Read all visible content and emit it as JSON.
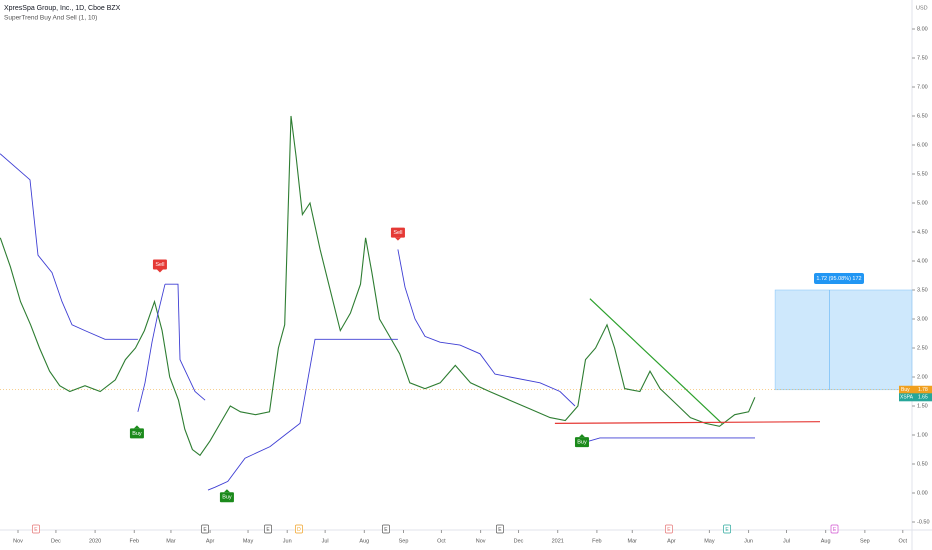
{
  "chart_data": {
    "type": "line",
    "title": "XpresSpa Group, Inc., 1D, Cboe BZX",
    "subtitle": "SuperTrend Buy And Sell (1, 10)",
    "currency": "USD",
    "xlim": [
      -14.24,
      707.3
    ],
    "ylim": [
      -0.5,
      8.5
    ],
    "yticks": [
      {
        "value": -0.5,
        "label": "-0.50"
      },
      {
        "value": 0,
        "label": "0.00"
      },
      {
        "value": 0.5,
        "label": "0.50"
      },
      {
        "value": 1,
        "label": "1.00"
      },
      {
        "value": 1.5,
        "label": "1.50"
      },
      {
        "value": 2,
        "label": "2.00"
      },
      {
        "value": 2.5,
        "label": "2.50"
      },
      {
        "value": 3,
        "label": "3.00"
      },
      {
        "value": 3.5,
        "label": "3.50"
      },
      {
        "value": 4,
        "label": "4.00"
      },
      {
        "value": 4.5,
        "label": "4.50"
      },
      {
        "value": 5,
        "label": "5.00"
      },
      {
        "value": 5.5,
        "label": "5.50"
      },
      {
        "value": 6,
        "label": "6.00"
      },
      {
        "value": 6.5,
        "label": "6.50"
      },
      {
        "value": 7,
        "label": "7.00"
      },
      {
        "value": 7.5,
        "label": "7.50"
      },
      {
        "value": 8,
        "label": "8.00"
      }
    ],
    "xticks": [
      {
        "value": 0,
        "label": "Nov"
      },
      {
        "value": 30,
        "label": "Dec"
      },
      {
        "value": 61,
        "label": "2020"
      },
      {
        "value": 92,
        "label": "Feb"
      },
      {
        "value": 121,
        "label": "Mar"
      },
      {
        "value": 152,
        "label": "Apr"
      },
      {
        "value": 182,
        "label": "May"
      },
      {
        "value": 213,
        "label": "Jun"
      },
      {
        "value": 243,
        "label": "Jul"
      },
      {
        "value": 274,
        "label": "Aug"
      },
      {
        "value": 305,
        "label": "Sep"
      },
      {
        "value": 335,
        "label": "Oct"
      },
      {
        "value": 366,
        "label": "Nov"
      },
      {
        "value": 396,
        "label": "Dec"
      },
      {
        "value": 427,
        "label": "2021"
      },
      {
        "value": 458,
        "label": "Feb"
      },
      {
        "value": 486,
        "label": "Mar"
      },
      {
        "value": 517,
        "label": "Apr"
      },
      {
        "value": 547,
        "label": "May"
      },
      {
        "value": 578,
        "label": "Jun"
      },
      {
        "value": 608,
        "label": "Jul"
      },
      {
        "value": 639,
        "label": "Aug"
      },
      {
        "value": 670,
        "label": "Sep"
      },
      {
        "value": 700,
        "label": "Oct"
      }
    ],
    "series": [
      {
        "color": "#2e7d32",
        "x": [
          -14,
          -6,
          2,
          10,
          17,
          25,
          33,
          41,
          53,
          65,
          77,
          85,
          93,
          100,
          108,
          114,
          120,
          127,
          132,
          138,
          144,
          152,
          160,
          168,
          176,
          188,
          199,
          206,
          211,
          216,
          220,
          225,
          231,
          239,
          247,
          255,
          263,
          271,
          275,
          280,
          286,
          294,
          302,
          310,
          322,
          334,
          346,
          358,
          373,
          389,
          405,
          421,
          433,
          443,
          449,
          457,
          466,
          472,
          480,
          492,
          500,
          508,
          520,
          532,
          544,
          555,
          567,
          578,
          583
        ],
        "values": [
          4.4,
          3.9,
          3.3,
          2.9,
          2.5,
          2.1,
          1.85,
          1.75,
          1.85,
          1.75,
          1.95,
          2.3,
          2.5,
          2.8,
          3.3,
          2.8,
          2.0,
          1.6,
          1.1,
          0.75,
          0.65,
          0.9,
          1.2,
          1.5,
          1.4,
          1.35,
          1.4,
          2.5,
          2.9,
          6.5,
          5.8,
          4.8,
          5.0,
          4.2,
          3.5,
          2.8,
          3.1,
          3.6,
          4.4,
          3.8,
          3.0,
          2.7,
          2.4,
          1.9,
          1.8,
          1.9,
          2.2,
          1.9,
          1.75,
          1.6,
          1.45,
          1.3,
          1.25,
          1.5,
          2.3,
          2.5,
          2.9,
          2.5,
          1.8,
          1.75,
          2.1,
          1.8,
          1.55,
          1.3,
          1.2,
          1.15,
          1.35,
          1.4,
          1.65
        ]
      },
      {
        "color": "#3f3fd4",
        "x": [
          -14.2,
          9.5,
          15.8,
          26.9,
          34.8,
          42.7,
          53,
          68.8,
          94.9,
          null,
          94.9,
          100.5,
          106,
          110.8,
          116.3,
          null,
          116.3,
          126.6,
          128.2,
          140,
          148,
          null,
          150.3,
          155.9,
          166,
          179.6,
          199.4,
          211.2,
          223.1,
          235,
          300.6,
          null,
          300.6,
          306.2,
          314.1,
          322,
          333.9,
          349.7,
          365.5,
          377.4,
          389.2,
          413,
          428.8,
          440.7,
          null,
          444.6,
          460.4,
          583.1
        ],
        "values": [
          5.85,
          5.4,
          4.1,
          3.8,
          3.3,
          2.9,
          2.8,
          2.65,
          2.65,
          null,
          1.4,
          1.9,
          2.6,
          3.1,
          3.6,
          null,
          3.6,
          3.6,
          2.3,
          1.75,
          1.6,
          null,
          0.05,
          0.1,
          0.2,
          0.6,
          0.8,
          1.0,
          1.2,
          2.65,
          2.65,
          null,
          4.2,
          3.55,
          3.0,
          2.7,
          2.6,
          2.55,
          2.4,
          2.05,
          2.0,
          1.9,
          1.75,
          1.5,
          null,
          0.85,
          0.95,
          0.95
        ]
      }
    ],
    "signals": [
      {
        "label": "Sell",
        "x": 112.3,
        "value": 3.75,
        "color": "#e53935"
      },
      {
        "label": "Buy",
        "x": 94.1,
        "value": 1.2,
        "color": "#1b8a1b"
      },
      {
        "label": "Buy",
        "x": 165.3,
        "value": 0.1,
        "color": "#1b8a1b"
      },
      {
        "label": "Sell",
        "x": 300.6,
        "value": 4.3,
        "color": "#e53935"
      },
      {
        "label": "Buy",
        "x": 446.2,
        "value": 1.05,
        "color": "#1b8a1b"
      }
    ],
    "trendlines": [
      {
        "color": "#2ca02c",
        "x": [
          452.5,
          557
        ],
        "values": [
          3.35,
          1.2
        ]
      },
      {
        "color": "#e53935",
        "x": [
          424.8,
          634.5
        ],
        "values": [
          1.2,
          1.23
        ]
      }
    ],
    "position": {
      "label": "1.72 (95.08%) 172",
      "x": [
        599,
        707.3
      ],
      "entry": 1.78,
      "target": 3.5
    },
    "entry_badge": {
      "label": "Buy",
      "price": 1.78
    },
    "last_badge": {
      "symbol": "XSPA",
      "price": 1.65
    },
    "events": [
      {
        "label": "E",
        "x": 14.2,
        "color": "#e57373"
      },
      {
        "label": "E",
        "x": 148,
        "color": "#555"
      },
      {
        "label": "E",
        "x": 197.8,
        "color": "#555"
      },
      {
        "label": "D",
        "x": 222.3,
        "color": "#f0a020"
      },
      {
        "label": "E",
        "x": 291.1,
        "color": "#555"
      },
      {
        "label": "E",
        "x": 381.3,
        "color": "#555"
      },
      {
        "label": "E",
        "x": 515,
        "color": "#e57373"
      },
      {
        "label": "E",
        "x": 561,
        "color": "#26a69a"
      },
      {
        "label": "E",
        "x": 646,
        "color": "#d050d0"
      }
    ]
  }
}
